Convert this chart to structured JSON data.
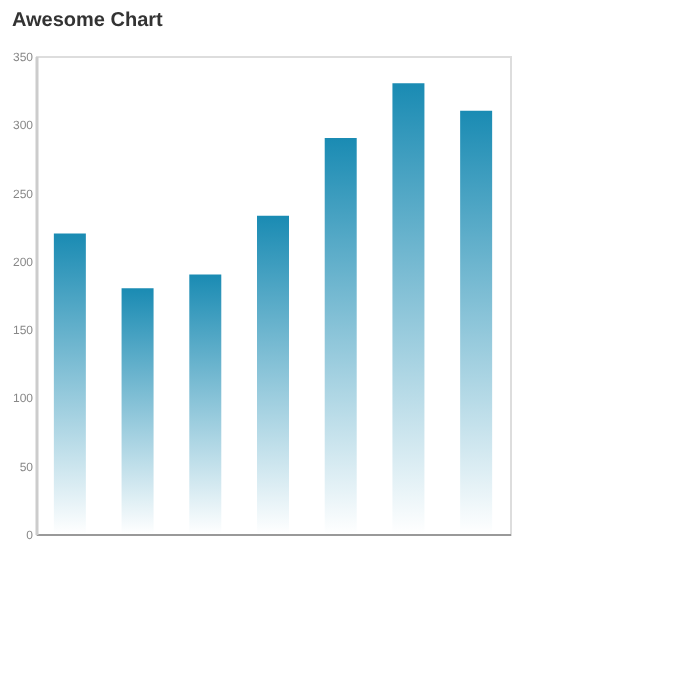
{
  "chart_data": {
    "type": "bar",
    "title": "Awesome Chart",
    "categories": [
      null,
      null,
      null,
      null,
      null,
      null,
      null
    ],
    "values": [
      220,
      180,
      190,
      233,
      290,
      330,
      310
    ],
    "color": "#1a8bb3",
    "ylim": [
      0,
      350
    ],
    "yticks": [
      0,
      50,
      100,
      150,
      200,
      250,
      300,
      350
    ],
    "grid": false,
    "tick_labels": "y"
  }
}
